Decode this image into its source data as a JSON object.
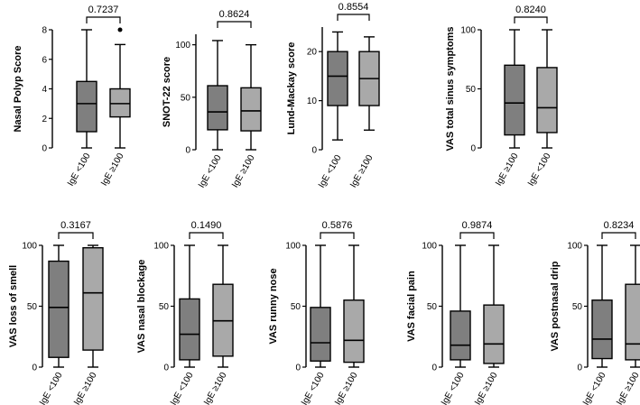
{
  "colors": {
    "box_a": "#7f7f7f",
    "box_b": "#a9a9a9",
    "stroke": "#000000"
  },
  "chart_data": [
    {
      "type": "box",
      "ylabel": "Nasal Polyp Score",
      "categories": [
        "IgE <100",
        "IgE ≥100"
      ],
      "ylim": [
        0,
        8
      ],
      "yticks": [
        0,
        2,
        4,
        6,
        8
      ],
      "p_value": "0.7237",
      "boxes": [
        {
          "min": 0,
          "q1": 1.1,
          "median": 3.0,
          "q3": 4.5,
          "max": 8,
          "outliers": []
        },
        {
          "min": 0,
          "q1": 2.1,
          "median": 3.0,
          "q3": 4.0,
          "max": 7,
          "outliers": [
            8
          ]
        }
      ]
    },
    {
      "type": "box",
      "ylabel": "SNOT-22 score",
      "categories": [
        "IgE <100",
        "IgE ≥100"
      ],
      "ylim": [
        0,
        110
      ],
      "yticks": [
        0,
        50,
        100
      ],
      "p_value": "0.8624",
      "boxes": [
        {
          "min": 0,
          "q1": 19,
          "median": 36,
          "q3": 61,
          "max": 104,
          "outliers": []
        },
        {
          "min": 0,
          "q1": 18,
          "median": 37,
          "q3": 59,
          "max": 100,
          "outliers": []
        }
      ]
    },
    {
      "type": "box",
      "ylabel": "Lund-Mackay score",
      "categories": [
        "IgE <100",
        "IgE ≥100"
      ],
      "ylim": [
        0,
        25
      ],
      "yticks": [
        0,
        10,
        20
      ],
      "p_value": "0.8554",
      "boxes": [
        {
          "min": 2,
          "q1": 9,
          "median": 15,
          "q3": 20,
          "max": 24,
          "outliers": []
        },
        {
          "min": 4,
          "q1": 9,
          "median": 14.5,
          "q3": 20,
          "max": 23,
          "outliers": []
        }
      ]
    },
    {
      "type": "box",
      "ylabel": "VAS total sinus symptoms",
      "categories": [
        "IgE ≥100",
        "IgE <100"
      ],
      "ylim": [
        0,
        100
      ],
      "yticks": [
        0,
        50,
        100
      ],
      "p_value": "0.8240",
      "boxes": [
        {
          "min": 0,
          "q1": 11,
          "median": 38,
          "q3": 70,
          "max": 100,
          "outliers": []
        },
        {
          "min": 0,
          "q1": 13,
          "median": 34,
          "q3": 68,
          "max": 100,
          "outliers": []
        }
      ]
    },
    {
      "type": "box",
      "ylabel": "VAS loss of smell",
      "categories": [
        "IgE <100",
        "IgE ≥100"
      ],
      "ylim": [
        0,
        100
      ],
      "yticks": [
        0,
        50,
        100
      ],
      "p_value": "0.3167",
      "boxes": [
        {
          "min": 0,
          "q1": 8,
          "median": 49,
          "q3": 87,
          "max": 100,
          "outliers": []
        },
        {
          "min": 0,
          "q1": 14,
          "median": 61,
          "q3": 98,
          "max": 100,
          "outliers": []
        }
      ]
    },
    {
      "type": "box",
      "ylabel": "VAS nasal blockage",
      "categories": [
        "IgE <100",
        "IgE ≥100"
      ],
      "ylim": [
        0,
        100
      ],
      "yticks": [
        0,
        50,
        100
      ],
      "p_value": "0.1490",
      "boxes": [
        {
          "min": 0,
          "q1": 6,
          "median": 27,
          "q3": 56,
          "max": 100,
          "outliers": []
        },
        {
          "min": 0,
          "q1": 9,
          "median": 38,
          "q3": 68,
          "max": 100,
          "outliers": []
        }
      ]
    },
    {
      "type": "box",
      "ylabel": "VAS runny nose",
      "categories": [
        "IgE <100",
        "IgE ≥100"
      ],
      "ylim": [
        0,
        100
      ],
      "yticks": [
        0,
        50,
        100
      ],
      "p_value": "0.5876",
      "boxes": [
        {
          "min": 0,
          "q1": 5,
          "median": 20,
          "q3": 49,
          "max": 100,
          "outliers": []
        },
        {
          "min": 0,
          "q1": 4,
          "median": 22,
          "q3": 55,
          "max": 100,
          "outliers": []
        }
      ]
    },
    {
      "type": "box",
      "ylabel": "VAS facial pain",
      "categories": [
        "IgE <100",
        "IgE ≥100"
      ],
      "ylim": [
        0,
        100
      ],
      "yticks": [
        0,
        50,
        100
      ],
      "p_value": "0.9874",
      "boxes": [
        {
          "min": 0,
          "q1": 6,
          "median": 18,
          "q3": 46,
          "max": 100,
          "outliers": []
        },
        {
          "min": 0,
          "q1": 3,
          "median": 19,
          "q3": 51,
          "max": 100,
          "outliers": []
        }
      ]
    },
    {
      "type": "box",
      "ylabel": "VAS postnasal drip",
      "categories": [
        "IgE <100",
        "IgE ≥100"
      ],
      "ylim": [
        0,
        100
      ],
      "yticks": [
        0,
        50,
        100
      ],
      "p_value": "0.8234",
      "boxes": [
        {
          "min": 0,
          "q1": 7,
          "median": 23,
          "q3": 55,
          "max": 100,
          "outliers": []
        },
        {
          "min": 0,
          "q1": 6,
          "median": 19,
          "q3": 68,
          "max": 100,
          "outliers": []
        }
      ]
    }
  ]
}
